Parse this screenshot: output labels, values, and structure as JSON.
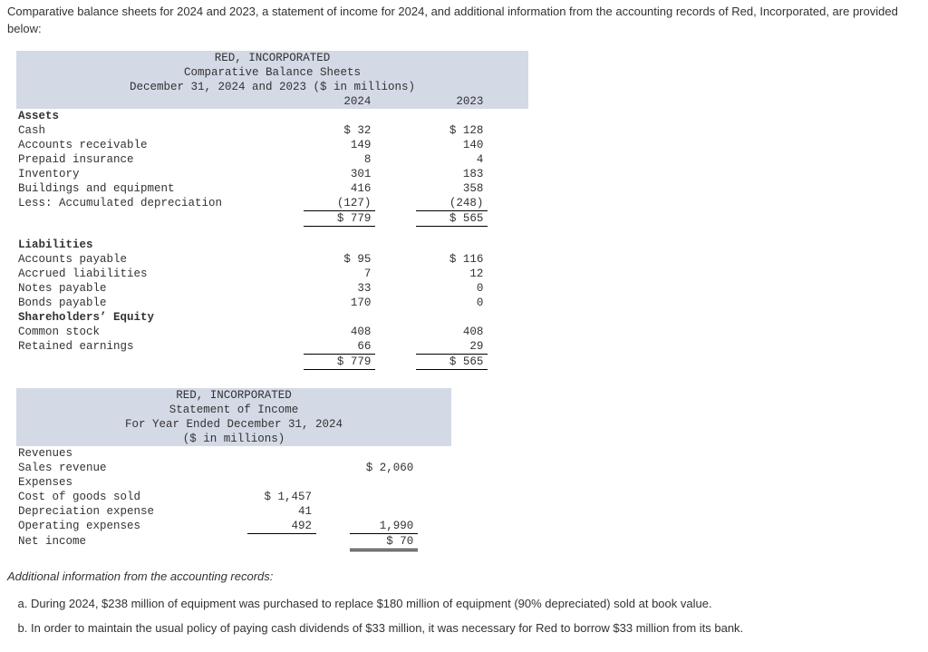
{
  "intro": "Comparative balance sheets for 2024 and 2023, a statement of income for 2024, and additional information from the accounting records of Red, Incorporated, are provided below:",
  "bs": {
    "title1": "RED, INCORPORATED",
    "title2": "Comparative Balance Sheets",
    "title3": "December 31, 2024 and 2023 ($ in millions)",
    "col1": "2024",
    "col2": "2023",
    "assets_hdr": "Assets",
    "rows_assets": [
      {
        "label": "Cash",
        "v1": "$ 32",
        "v2": "$ 128"
      },
      {
        "label": "Accounts receivable",
        "v1": "149",
        "v2": "140"
      },
      {
        "label": "Prepaid insurance",
        "v1": "8",
        "v2": "4"
      },
      {
        "label": "Inventory",
        "v1": "301",
        "v2": "183"
      },
      {
        "label": "Buildings and equipment",
        "v1": "416",
        "v2": "358"
      },
      {
        "label": "Less: Accumulated depreciation",
        "v1": "(127)",
        "v2": "(248)"
      }
    ],
    "assets_total": {
      "v1": "$ 779",
      "v2": "$ 565"
    },
    "liab_hdr": "Liabilities",
    "rows_liab": [
      {
        "label": "Accounts payable",
        "v1": "$ 95",
        "v2": "$ 116"
      },
      {
        "label": "Accrued liabilities",
        "v1": "7",
        "v2": "12"
      },
      {
        "label": "Notes payable",
        "v1": "33",
        "v2": "0"
      },
      {
        "label": "Bonds payable",
        "v1": "170",
        "v2": "0"
      }
    ],
    "eq_hdr": "Shareholders’ Equity",
    "rows_eq": [
      {
        "label": "Common stock",
        "v1": "408",
        "v2": "408"
      },
      {
        "label": "Retained earnings",
        "v1": "66",
        "v2": "29"
      }
    ],
    "liab_total": {
      "v1": "$ 779",
      "v2": "$ 565"
    }
  },
  "is": {
    "title1": "RED, INCORPORATED",
    "title2": "Statement of Income",
    "title3": "For Year Ended December 31, 2024",
    "title4": "($ in millions)",
    "rev_hdr": "Revenues",
    "sales_lbl": "Sales revenue",
    "sales_val": "$ 2,060",
    "exp_hdr": "Expenses",
    "rows_exp": [
      {
        "label": "Cost of goods sold",
        "v": "$ 1,457"
      },
      {
        "label": "Depreciation expense",
        "v": "41"
      },
      {
        "label": "Operating expenses",
        "v": "492"
      }
    ],
    "exp_total": "1,990",
    "ni_lbl": "Net income",
    "ni_val": "$ 70"
  },
  "addl": {
    "hdr": "Additional information from the accounting records:",
    "items": [
      {
        "m": "a.",
        "t": "During 2024, $238 million of equipment was purchased to replace $180 million of equipment (90% depreciated) sold at book value."
      },
      {
        "m": "b.",
        "t": "In order to maintain the usual policy of paying cash dividends of $33 million, it was necessary for Red to borrow $33 million from its bank."
      }
    ]
  }
}
